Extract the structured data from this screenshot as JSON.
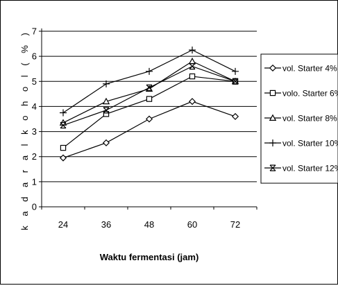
{
  "chart_data": {
    "type": "line",
    "x": [
      24,
      36,
      48,
      60,
      72
    ],
    "xticklabels": [
      "24",
      "36",
      "48",
      "60",
      "72"
    ],
    "xlabel": "Waktu fermentasi (jam)",
    "ylabel": "k a d a r  a l k o h o l  ( % )",
    "ylim": [
      0,
      7
    ],
    "yticks": [
      0,
      1,
      2,
      3,
      4,
      5,
      6,
      7
    ],
    "yticklabels": [
      "0",
      "1",
      "2",
      "3",
      "4",
      "5",
      "6",
      "7"
    ],
    "grid": "horizontal",
    "legend_position": "right",
    "series": [
      {
        "name": "vol. Starter 4%",
        "marker": "diamond",
        "values": [
          1.95,
          2.55,
          3.5,
          4.2,
          3.6
        ]
      },
      {
        "name": "volo. Starter 6%",
        "marker": "square",
        "values": [
          2.35,
          3.7,
          4.3,
          5.2,
          5.0
        ]
      },
      {
        "name": "vol. Starter 8%",
        "marker": "triangle",
        "values": [
          3.35,
          4.2,
          4.7,
          5.8,
          5.0
        ]
      },
      {
        "name": "vol. Starter 10%",
        "marker": "plus",
        "values": [
          3.75,
          4.9,
          5.4,
          6.25,
          5.4
        ]
      },
      {
        "name": "vol. Starter 12%",
        "marker": "star",
        "values": [
          3.25,
          3.85,
          4.75,
          5.6,
          5.0
        ]
      }
    ]
  }
}
